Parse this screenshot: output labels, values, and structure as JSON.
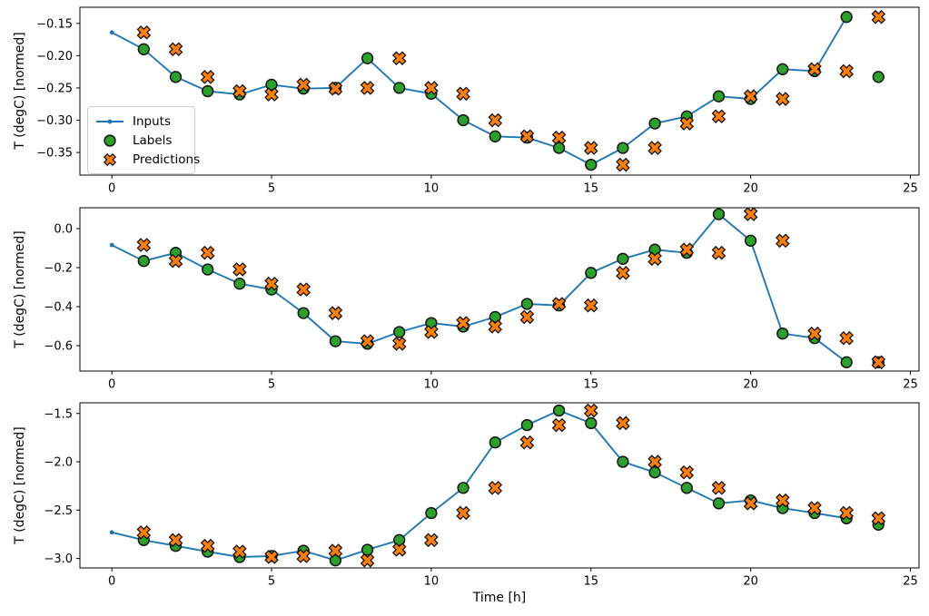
{
  "figure": {
    "xlabel": "Time [h]",
    "ylabel": "T (degC) [normed]",
    "colors": {
      "inputs": "#1f77b4",
      "labels": "#2ca02c",
      "predictions": "#ff7f0e",
      "marker_edge": "#141414",
      "spine": "#000000",
      "legend_border": "#cccccc"
    },
    "legend": {
      "position": "upper-left-of-top-subplot",
      "inputs_label": "Inputs",
      "labels_label": "Labels",
      "predictions_label": "Predictions"
    }
  },
  "chart_data": [
    {
      "type": "line",
      "subplot": "top",
      "title": "",
      "xlabel": "",
      "ylabel": "T (degC) [normed]",
      "grid": false,
      "legend_visible": true,
      "xlim": [
        -1.0,
        25.27
      ],
      "ylim": [
        -0.385,
        -0.125
      ],
      "xticks": [
        0,
        5,
        10,
        15,
        20,
        25
      ],
      "xtick_labels": [
        "0",
        "5",
        "10",
        "15",
        "20",
        "25"
      ],
      "yticks": [
        -0.15,
        -0.2,
        -0.25,
        -0.3,
        -0.35
      ],
      "ytick_labels": [
        "−0.15",
        "−0.20",
        "−0.25",
        "−0.30",
        "−0.35"
      ],
      "series": [
        {
          "name": "Inputs",
          "style": "line-dot",
          "x": [
            0,
            1,
            2,
            3,
            4,
            5,
            6,
            7,
            8,
            9,
            10,
            11,
            12,
            13,
            14,
            15,
            16,
            17,
            18,
            19,
            20,
            21,
            22,
            23
          ],
          "y": [
            -0.164,
            -0.19,
            -0.233,
            -0.255,
            -0.26,
            -0.245,
            -0.251,
            -0.25,
            -0.204,
            -0.25,
            -0.259,
            -0.3,
            -0.325,
            -0.327,
            -0.343,
            -0.369,
            -0.343,
            -0.305,
            -0.294,
            -0.263,
            -0.267,
            -0.221,
            -0.224,
            -0.14
          ]
        },
        {
          "name": "Labels",
          "style": "scatter-circle",
          "x": [
            1,
            2,
            3,
            4,
            5,
            6,
            7,
            8,
            9,
            10,
            11,
            12,
            13,
            14,
            15,
            16,
            17,
            18,
            19,
            20,
            21,
            22,
            23,
            24
          ],
          "y": [
            -0.19,
            -0.233,
            -0.255,
            -0.26,
            -0.245,
            -0.251,
            -0.25,
            -0.204,
            -0.25,
            -0.259,
            -0.3,
            -0.325,
            -0.327,
            -0.343,
            -0.369,
            -0.343,
            -0.305,
            -0.294,
            -0.263,
            -0.267,
            -0.221,
            -0.224,
            -0.14,
            -0.233
          ]
        },
        {
          "name": "Predictions",
          "style": "scatter-x",
          "x": [
            1,
            2,
            3,
            4,
            5,
            6,
            7,
            8,
            9,
            10,
            11,
            12,
            13,
            14,
            15,
            16,
            17,
            18,
            19,
            20,
            21,
            22,
            23,
            24
          ],
          "y": [
            -0.164,
            -0.19,
            -0.233,
            -0.255,
            -0.26,
            -0.245,
            -0.251,
            -0.25,
            -0.204,
            -0.25,
            -0.259,
            -0.3,
            -0.325,
            -0.327,
            -0.343,
            -0.369,
            -0.343,
            -0.305,
            -0.294,
            -0.263,
            -0.267,
            -0.221,
            -0.224,
            -0.14
          ]
        }
      ]
    },
    {
      "type": "line",
      "subplot": "middle",
      "title": "",
      "xlabel": "",
      "ylabel": "T (degC) [normed]",
      "grid": false,
      "legend_visible": false,
      "xlim": [
        -1.0,
        25.27
      ],
      "ylim": [
        -0.73,
        0.107
      ],
      "xticks": [
        0,
        5,
        10,
        15,
        20,
        25
      ],
      "xtick_labels": [
        "0",
        "5",
        "10",
        "15",
        "20",
        "25"
      ],
      "yticks": [
        0.0,
        -0.2,
        -0.4,
        -0.6
      ],
      "ytick_labels": [
        "0.0",
        "−0.2",
        "−0.4",
        "−0.6"
      ],
      "series": [
        {
          "name": "Inputs",
          "style": "line-dot",
          "x": [
            0,
            1,
            2,
            3,
            4,
            5,
            6,
            7,
            8,
            9,
            10,
            11,
            12,
            13,
            14,
            15,
            16,
            17,
            18,
            19,
            20,
            21,
            22,
            23
          ],
          "y": [
            -0.084,
            -0.166,
            -0.124,
            -0.209,
            -0.282,
            -0.312,
            -0.433,
            -0.577,
            -0.59,
            -0.53,
            -0.484,
            -0.502,
            -0.453,
            -0.386,
            -0.394,
            -0.227,
            -0.155,
            -0.108,
            -0.124,
            0.074,
            -0.062,
            -0.538,
            -0.561,
            -0.685
          ]
        },
        {
          "name": "Labels",
          "style": "scatter-circle",
          "x": [
            1,
            2,
            3,
            4,
            5,
            6,
            7,
            8,
            9,
            10,
            11,
            12,
            13,
            14,
            15,
            16,
            17,
            18,
            19,
            20,
            21,
            22,
            23,
            24
          ],
          "y": [
            -0.166,
            -0.124,
            -0.209,
            -0.282,
            -0.312,
            -0.433,
            -0.577,
            -0.59,
            -0.53,
            -0.484,
            -0.502,
            -0.453,
            -0.386,
            -0.394,
            -0.227,
            -0.155,
            -0.108,
            -0.124,
            0.074,
            -0.062,
            -0.538,
            -0.561,
            -0.685,
            -0.685
          ]
        },
        {
          "name": "Predictions",
          "style": "scatter-x",
          "x": [
            1,
            2,
            3,
            4,
            5,
            6,
            7,
            8,
            9,
            10,
            11,
            12,
            13,
            14,
            15,
            16,
            17,
            18,
            19,
            20,
            21,
            22,
            23,
            24
          ],
          "y": [
            -0.084,
            -0.166,
            -0.124,
            -0.209,
            -0.282,
            -0.312,
            -0.433,
            -0.577,
            -0.59,
            -0.53,
            -0.484,
            -0.502,
            -0.453,
            -0.386,
            -0.394,
            -0.227,
            -0.155,
            -0.108,
            -0.124,
            0.074,
            -0.062,
            -0.538,
            -0.561,
            -0.685
          ]
        }
      ]
    },
    {
      "type": "line",
      "subplot": "bottom",
      "title": "",
      "xlabel": "Time [h]",
      "ylabel": "T (degC) [normed]",
      "grid": false,
      "legend_visible": false,
      "xlim": [
        -1.0,
        25.27
      ],
      "ylim": [
        -3.098,
        -1.39
      ],
      "xticks": [
        0,
        5,
        10,
        15,
        20,
        25
      ],
      "xtick_labels": [
        "0",
        "5",
        "10",
        "15",
        "20",
        "25"
      ],
      "yticks": [
        -1.5,
        -2.0,
        -2.5,
        -3.0
      ],
      "ytick_labels": [
        "−1.5",
        "−2.0",
        "−2.5",
        "−3.0"
      ],
      "series": [
        {
          "name": "Inputs",
          "style": "line-dot",
          "x": [
            0,
            1,
            2,
            3,
            4,
            5,
            6,
            7,
            8,
            9,
            10,
            11,
            12,
            13,
            14,
            15,
            16,
            17,
            18,
            19,
            20,
            21,
            22,
            23
          ],
          "y": [
            -2.73,
            -2.81,
            -2.87,
            -2.93,
            -2.985,
            -2.975,
            -2.92,
            -3.02,
            -2.91,
            -2.81,
            -2.53,
            -2.27,
            -1.8,
            -1.62,
            -1.47,
            -1.6,
            -2.0,
            -2.11,
            -2.27,
            -2.43,
            -2.4,
            -2.48,
            -2.53,
            -2.585
          ]
        },
        {
          "name": "Labels",
          "style": "scatter-circle",
          "x": [
            1,
            2,
            3,
            4,
            5,
            6,
            7,
            8,
            9,
            10,
            11,
            12,
            13,
            14,
            15,
            16,
            17,
            18,
            19,
            20,
            21,
            22,
            23,
            24
          ],
          "y": [
            -2.81,
            -2.87,
            -2.93,
            -2.985,
            -2.975,
            -2.92,
            -3.02,
            -2.91,
            -2.81,
            -2.53,
            -2.27,
            -1.8,
            -1.62,
            -1.47,
            -1.6,
            -2.0,
            -2.11,
            -2.27,
            -2.43,
            -2.4,
            -2.48,
            -2.53,
            -2.585,
            -2.65
          ]
        },
        {
          "name": "Predictions",
          "style": "scatter-x",
          "x": [
            1,
            2,
            3,
            4,
            5,
            6,
            7,
            8,
            9,
            10,
            11,
            12,
            13,
            14,
            15,
            16,
            17,
            18,
            19,
            20,
            21,
            22,
            23,
            24
          ],
          "y": [
            -2.73,
            -2.81,
            -2.87,
            -2.93,
            -2.985,
            -2.975,
            -2.92,
            -3.02,
            -2.91,
            -2.81,
            -2.53,
            -2.27,
            -1.8,
            -1.62,
            -1.47,
            -1.6,
            -2.0,
            -2.11,
            -2.27,
            -2.43,
            -2.4,
            -2.48,
            -2.53,
            -2.585
          ]
        }
      ]
    }
  ]
}
